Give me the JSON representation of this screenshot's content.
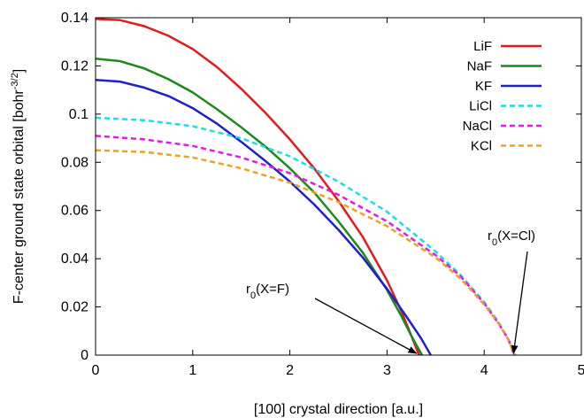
{
  "chart_data": {
    "type": "line",
    "xlabel": "[100] crystal direction [a.u.]",
    "ylabel": "F-center ground state orbital [bohr",
    "ylabel_sup": "-3/2",
    "ylabel_end": "]",
    "xlim": [
      0,
      5
    ],
    "ylim": [
      0,
      0.14
    ],
    "xticks": [
      "0",
      "1",
      "2",
      "3",
      "4",
      "5"
    ],
    "yticks": [
      "0",
      "0.02",
      "0.04",
      "0.06",
      "0.08",
      "0.1",
      "0.12",
      "0.14"
    ],
    "grid": false,
    "legend_position": "top-right",
    "series": [
      {
        "name": "LiF",
        "color": "#e41a1c",
        "dash": "solid",
        "x": [
          0,
          0.25,
          0.5,
          0.75,
          1.0,
          1.25,
          1.5,
          1.75,
          2.0,
          2.25,
          2.5,
          2.75,
          3.0,
          3.15,
          3.25,
          3.33
        ],
        "y": [
          0.1395,
          0.139,
          0.1365,
          0.1325,
          0.127,
          0.1195,
          0.1105,
          0.1005,
          0.0895,
          0.0775,
          0.064,
          0.049,
          0.031,
          0.018,
          0.008,
          0.0
        ]
      },
      {
        "name": "NaF",
        "color": "#1a8a1a",
        "dash": "solid",
        "x": [
          0,
          0.25,
          0.5,
          0.75,
          1.0,
          1.25,
          1.5,
          1.75,
          2.0,
          2.25,
          2.5,
          2.75,
          3.0,
          3.15,
          3.25,
          3.36
        ],
        "y": [
          0.123,
          0.122,
          0.119,
          0.1145,
          0.109,
          0.102,
          0.0945,
          0.0865,
          0.0775,
          0.0675,
          0.0555,
          0.0425,
          0.027,
          0.016,
          0.008,
          0.0
        ]
      },
      {
        "name": "KF",
        "color": "#1f1fd0",
        "dash": "solid",
        "x": [
          0,
          0.25,
          0.5,
          0.75,
          1.0,
          1.25,
          1.5,
          1.75,
          2.0,
          2.25,
          2.5,
          2.75,
          3.0,
          3.2,
          3.35,
          3.45
        ],
        "y": [
          0.1142,
          0.1135,
          0.111,
          0.1075,
          0.1025,
          0.096,
          0.0885,
          0.0805,
          0.072,
          0.0625,
          0.052,
          0.0405,
          0.0275,
          0.016,
          0.007,
          0.0
        ]
      },
      {
        "name": "LiCl",
        "color": "#1adfe6",
        "dash": "dashed",
        "x": [
          0,
          0.5,
          1.0,
          1.5,
          2.0,
          2.5,
          3.0,
          3.5,
          3.75,
          4.0,
          4.15,
          4.25,
          4.32
        ],
        "y": [
          0.0985,
          0.0975,
          0.095,
          0.09,
          0.0825,
          0.072,
          0.0595,
          0.043,
          0.0335,
          0.022,
          0.0135,
          0.0065,
          0.0
        ]
      },
      {
        "name": "NaCl",
        "color": "#e619e6",
        "dash": "dashed",
        "x": [
          0,
          0.5,
          1.0,
          1.5,
          2.0,
          2.5,
          3.0,
          3.5,
          3.75,
          4.0,
          4.15,
          4.25,
          4.31
        ],
        "y": [
          0.091,
          0.0895,
          0.0868,
          0.082,
          0.0755,
          0.0665,
          0.0555,
          0.0415,
          0.033,
          0.0215,
          0.013,
          0.0065,
          0.0
        ]
      },
      {
        "name": "KCl",
        "color": "#f0a020",
        "dash": "dashed",
        "x": [
          0,
          0.5,
          1.0,
          1.5,
          2.0,
          2.5,
          3.0,
          3.5,
          3.75,
          4.0,
          4.15,
          4.25,
          4.31
        ],
        "y": [
          0.085,
          0.0843,
          0.082,
          0.0775,
          0.0715,
          0.0635,
          0.0535,
          0.0405,
          0.032,
          0.021,
          0.013,
          0.0063,
          0.0
        ]
      }
    ],
    "annotations": [
      {
        "name": "annotation-r0-F",
        "sub": "0",
        "pre": "r",
        "post": "(X=F)",
        "target_x": 3.32,
        "target_y": 0.0
      },
      {
        "name": "annotation-r0-Cl",
        "sub": "0",
        "pre": "r",
        "post": "(X=Cl)",
        "target_x": 4.32,
        "target_y": 0.0
      }
    ]
  }
}
